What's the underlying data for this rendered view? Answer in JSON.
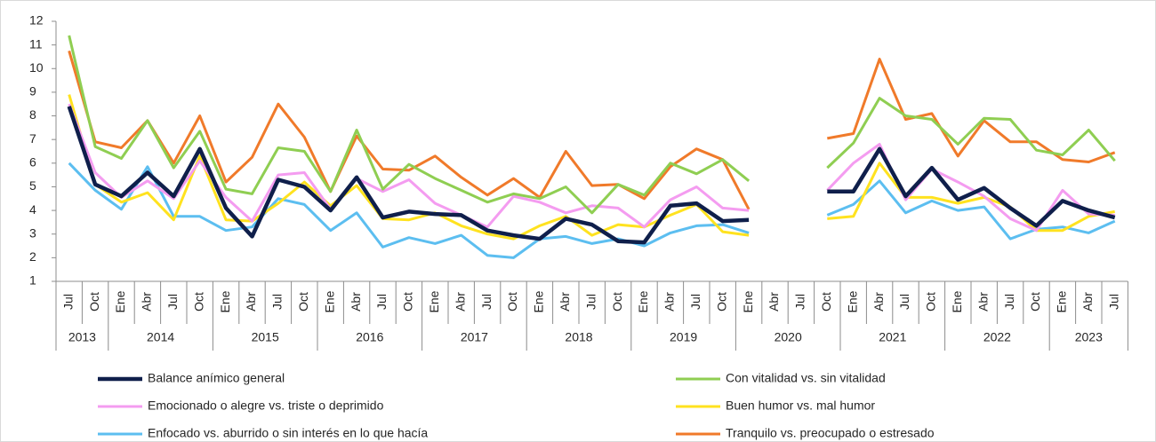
{
  "chart_data": {
    "type": "line",
    "groups": [
      {
        "label": "2013",
        "categories": [
          "Jul",
          "Oct"
        ]
      },
      {
        "label": "2014",
        "categories": [
          "Ene",
          "Abr",
          "Jul",
          "Oct"
        ]
      },
      {
        "label": "2015",
        "categories": [
          "Ene",
          "Abr",
          "Jul",
          "Oct"
        ]
      },
      {
        "label": "2016",
        "categories": [
          "Ene",
          "Abr",
          "Jul",
          "Oct"
        ]
      },
      {
        "label": "2017",
        "categories": [
          "Ene",
          "Abr",
          "Jul",
          "Oct"
        ]
      },
      {
        "label": "2018",
        "categories": [
          "Ene",
          "Abr",
          "Jul",
          "Oct"
        ]
      },
      {
        "label": "2019",
        "categories": [
          "Ene",
          "Abr",
          "Jul",
          "Oct"
        ]
      },
      {
        "label": "2020",
        "categories": [
          "Ene",
          "Abr",
          "Jul",
          "Oct"
        ]
      },
      {
        "label": "2021",
        "categories": [
          "Ene",
          "Abr",
          "Jul",
          "Oct"
        ]
      },
      {
        "label": "2022",
        "categories": [
          "Ene",
          "Abr",
          "Jul",
          "Oct"
        ]
      },
      {
        "label": "2023",
        "categories": [
          "Ene",
          "Abr",
          "Jul"
        ]
      }
    ],
    "series": [
      {
        "name": "Balance anímico general",
        "color": "#0f1f4b",
        "values": [
          8.4,
          5.1,
          4.6,
          5.6,
          4.6,
          6.6,
          4.1,
          2.9,
          5.3,
          5.0,
          4.0,
          5.4,
          3.7,
          3.95,
          3.85,
          3.8,
          3.15,
          2.95,
          2.8,
          3.65,
          3.4,
          2.7,
          2.65,
          4.2,
          4.3,
          3.55,
          3.6,
          null,
          null,
          4.8,
          4.8,
          6.6,
          4.6,
          5.8,
          4.45,
          4.95,
          4.1,
          3.35,
          4.4,
          4.0,
          3.7
        ]
      },
      {
        "name": "Con vitalidad vs. sin vitalidad",
        "color": "#8fce52",
        "values": [
          11.4,
          6.7,
          6.2,
          7.8,
          5.8,
          7.35,
          4.9,
          4.7,
          6.65,
          6.5,
          4.8,
          7.4,
          4.9,
          5.95,
          5.35,
          4.85,
          4.35,
          4.7,
          4.5,
          5.0,
          3.9,
          5.1,
          4.65,
          6.0,
          5.55,
          6.15,
          5.25,
          null,
          null,
          5.8,
          6.85,
          8.75,
          8.0,
          7.85,
          6.8,
          7.9,
          7.85,
          6.55,
          6.35,
          7.4,
          6.1
        ]
      },
      {
        "name": "Emocionado o alegre vs. triste o deprimido",
        "color": "#f49cf0",
        "values": [
          8.5,
          5.6,
          4.55,
          5.25,
          4.5,
          6.1,
          4.55,
          3.55,
          5.5,
          5.6,
          4.05,
          5.35,
          4.8,
          5.3,
          4.3,
          3.8,
          3.3,
          4.6,
          4.35,
          3.9,
          4.2,
          4.1,
          3.3,
          4.45,
          5.0,
          4.1,
          4.0,
          null,
          null,
          4.85,
          6.0,
          6.8,
          4.45,
          5.75,
          5.2,
          4.6,
          3.65,
          3.15,
          4.85,
          3.85,
          3.8
        ]
      },
      {
        "name": "Buen humor vs. mal humor",
        "color": "#ffe21f",
        "values": [
          8.9,
          5.1,
          4.35,
          4.75,
          3.6,
          6.3,
          3.6,
          3.55,
          4.3,
          5.2,
          4.2,
          5.05,
          3.65,
          3.6,
          3.9,
          3.35,
          3.0,
          2.8,
          3.35,
          3.75,
          2.95,
          3.4,
          3.3,
          3.8,
          4.25,
          3.1,
          2.95,
          null,
          null,
          3.65,
          3.75,
          6.0,
          4.55,
          4.55,
          4.3,
          4.55,
          4.15,
          3.15,
          3.15,
          3.75,
          3.95
        ]
      },
      {
        "name": "Enfocado vs. aburrido o sin interés en lo que hacía",
        "color": "#5cbef0",
        "values": [
          6.0,
          4.85,
          4.05,
          5.85,
          3.75,
          3.75,
          3.15,
          3.3,
          4.5,
          4.25,
          3.15,
          3.9,
          2.45,
          2.85,
          2.6,
          2.95,
          2.1,
          2.0,
          2.8,
          2.9,
          2.6,
          2.8,
          2.5,
          3.05,
          3.35,
          3.4,
          3.05,
          null,
          null,
          3.8,
          4.25,
          5.25,
          3.9,
          4.4,
          4.0,
          4.15,
          2.8,
          3.2,
          3.3,
          3.05,
          3.55
        ]
      },
      {
        "name": "Tranquilo vs. preocupado o estresado",
        "color": "#f07a2a",
        "values": [
          10.75,
          6.9,
          6.65,
          7.8,
          6.0,
          8.0,
          5.2,
          6.25,
          8.5,
          7.1,
          4.8,
          7.15,
          5.75,
          5.7,
          6.3,
          5.4,
          4.65,
          5.35,
          4.55,
          6.5,
          5.05,
          5.1,
          4.5,
          5.85,
          6.6,
          6.15,
          4.05,
          null,
          null,
          7.05,
          7.25,
          10.4,
          7.85,
          8.1,
          6.3,
          7.8,
          6.9,
          6.9,
          6.15,
          6.05,
          6.45
        ]
      }
    ],
    "ylim": [
      1,
      12
    ],
    "yticks": [
      1,
      2,
      3,
      4,
      5,
      6,
      7,
      8,
      9,
      10,
      11,
      12
    ],
    "grid": false,
    "legend": "bottom"
  }
}
